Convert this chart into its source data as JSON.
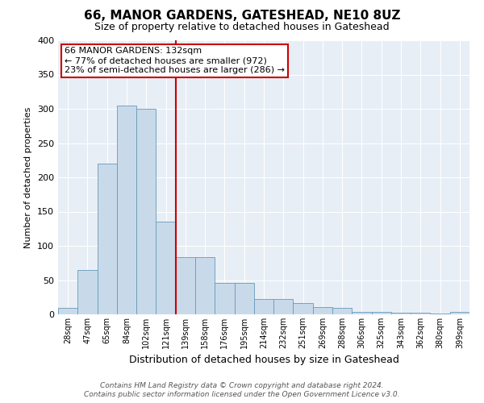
{
  "title": "66, MANOR GARDENS, GATESHEAD, NE10 8UZ",
  "subtitle": "Size of property relative to detached houses in Gateshead",
  "xlabel": "Distribution of detached houses by size in Gateshead",
  "ylabel": "Number of detached properties",
  "bin_labels": [
    "28sqm",
    "47sqm",
    "65sqm",
    "84sqm",
    "102sqm",
    "121sqm",
    "139sqm",
    "158sqm",
    "176sqm",
    "195sqm",
    "214sqm",
    "232sqm",
    "251sqm",
    "269sqm",
    "288sqm",
    "306sqm",
    "325sqm",
    "343sqm",
    "362sqm",
    "380sqm",
    "399sqm"
  ],
  "bar_values": [
    10,
    65,
    220,
    305,
    300,
    135,
    84,
    84,
    46,
    46,
    22,
    22,
    16,
    11,
    10,
    4,
    4,
    2,
    2,
    1,
    4
  ],
  "bar_color": "#c8daea",
  "bar_edgecolor": "#6699bb",
  "vline_x_index": 6,
  "vline_color": "#cc0000",
  "ylim": [
    0,
    400
  ],
  "yticks": [
    0,
    50,
    100,
    150,
    200,
    250,
    300,
    350,
    400
  ],
  "annotation_title": "66 MANOR GARDENS: 132sqm",
  "annotation_line1": "← 77% of detached houses are smaller (972)",
  "annotation_line2": "23% of semi-detached houses are larger (286) →",
  "annotation_box_facecolor": "#ffffff",
  "annotation_box_edgecolor": "#cc0000",
  "footer1": "Contains HM Land Registry data © Crown copyright and database right 2024.",
  "footer2": "Contains public sector information licensed under the Open Government Licence v3.0.",
  "bg_color": "#ffffff",
  "plot_bg_color": "#e8eef5",
  "grid_color": "#ffffff",
  "title_fontsize": 11,
  "subtitle_fontsize": 9,
  "ylabel_fontsize": 8,
  "xlabel_fontsize": 9,
  "ytick_fontsize": 8,
  "xtick_fontsize": 7,
  "annotation_fontsize": 8,
  "footer_fontsize": 6.5
}
